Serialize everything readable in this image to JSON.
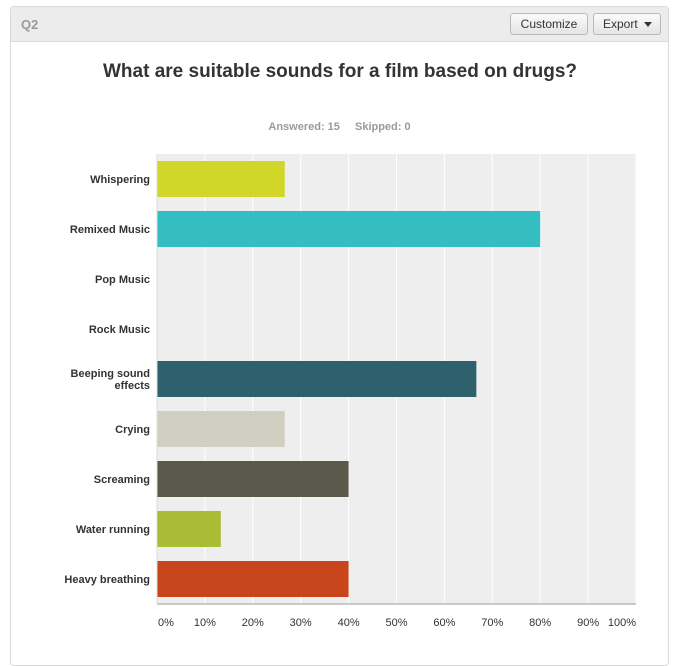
{
  "header": {
    "question_label": "Q2",
    "customize_label": "Customize",
    "export_label": "Export"
  },
  "stats": {
    "answered": "Answered: 15",
    "skipped": "Skipped: 0"
  },
  "colors": {
    "plot_background": "#eeeeee",
    "gridline": "#ffffff",
    "axis": "#999999"
  },
  "chart_data": {
    "type": "bar",
    "orientation": "horizontal",
    "title": "What are suitable sounds for a film based on drugs?",
    "categories": [
      "Whispering",
      "Remixed Music",
      "Pop Music",
      "Rock Music",
      "Beeping sound effects",
      "Crying",
      "Screaming",
      "Water running",
      "Heavy breathing"
    ],
    "values": [
      26.67,
      80.0,
      0,
      0,
      66.67,
      26.67,
      40.0,
      13.33,
      40.0
    ],
    "bar_colors": [
      "#d1d628",
      "#35bec1",
      "#9b59b6",
      "#e5a820",
      "#2e606e",
      "#d0cfc1",
      "#5a5a4c",
      "#a9bc36",
      "#c9461c"
    ],
    "xlim": [
      0,
      100
    ],
    "x_ticks": [
      "0%",
      "10%",
      "20%",
      "30%",
      "40%",
      "50%",
      "60%",
      "70%",
      "80%",
      "90%",
      "100%"
    ],
    "grid": true
  }
}
